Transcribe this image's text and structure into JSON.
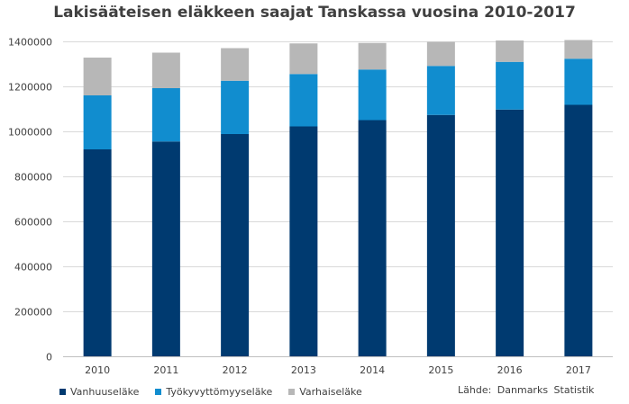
{
  "chart_data": {
    "type": "bar",
    "stacked": true,
    "title": "Lakisääteisen eläkkeen saajat Tanskassa vuosina 2010-2017",
    "xlabel": "",
    "ylabel": "",
    "ylim": [
      0,
      1400000
    ],
    "y_ticks": [
      "0",
      "200000",
      "400000",
      "600000",
      "800000",
      "1000000",
      "1200000",
      "1400000"
    ],
    "y_tick_values": [
      0,
      200000,
      400000,
      600000,
      800000,
      1000000,
      1200000,
      1400000
    ],
    "categories": [
      "2010",
      "2011",
      "2012",
      "2013",
      "2014",
      "2015",
      "2016",
      "2017"
    ],
    "grid": true,
    "legend_position": "bottom-left",
    "series": [
      {
        "name": "Vanhuuseläke",
        "color": "#003A70",
        "values": [
          920000,
          955000,
          988000,
          1022000,
          1050000,
          1073000,
          1097000,
          1118000
        ]
      },
      {
        "name": "Työkyvyttömyyseläke",
        "color": "#118DCF",
        "values": [
          240000,
          237000,
          237000,
          233000,
          225000,
          218000,
          212000,
          205000
        ]
      },
      {
        "name": "Varhaiseläke",
        "color": "#B7B7B7",
        "values": [
          168000,
          158000,
          145000,
          136000,
          118000,
          107000,
          95000,
          83000
        ]
      }
    ],
    "source": "Lähde: Danmarks Statistik"
  }
}
